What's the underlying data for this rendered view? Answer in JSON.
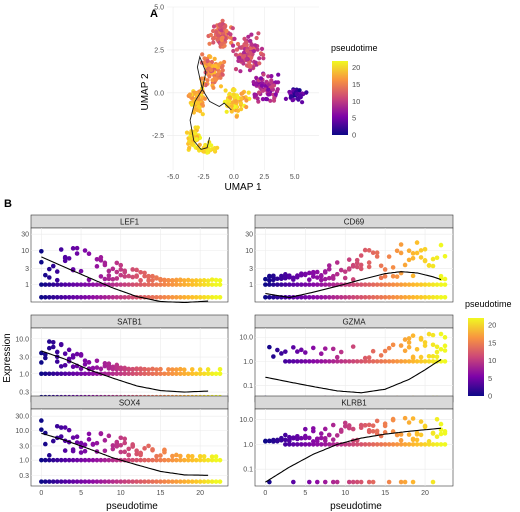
{
  "panel_a": {
    "tag": "A",
    "xlabel": "UMAP 1",
    "ylabel": "UMAP 2",
    "x_ticks": [
      "-5.0",
      "-2.5",
      "0.0",
      "2.5",
      "5.0"
    ],
    "y_ticks": [
      "-2.5",
      "0.0",
      "2.5",
      "5.0"
    ],
    "legend_title": "pseudotime",
    "legend_ticks": [
      "20",
      "15",
      "10",
      "5",
      "0"
    ]
  },
  "panel_b": {
    "tag": "B",
    "xlabel_left": "pseudotime",
    "xlabel_right": "pseudotime",
    "ylabel": "Expression",
    "legend_title": "pseudotime",
    "legend_ticks": [
      "20",
      "15",
      "10",
      "5",
      "0"
    ],
    "x_ticks": [
      "0",
      "5",
      "10",
      "15",
      "20"
    ],
    "facets": [
      {
        "gene": "LEF1",
        "y_ticks": [
          "30",
          "10",
          "3",
          "1"
        ]
      },
      {
        "gene": "CD69",
        "y_ticks": [
          "30",
          "10",
          "3",
          "1"
        ]
      },
      {
        "gene": "SATB1",
        "y_ticks": [
          "10.0",
          "3.0",
          "1.0",
          "0.3"
        ]
      },
      {
        "gene": "GZMA",
        "y_ticks": [
          "10.0",
          "1.0",
          "0.1"
        ]
      },
      {
        "gene": "SOX4",
        "y_ticks": [
          "30.0",
          "10.0",
          "3.0",
          "1.0",
          "0.3"
        ]
      },
      {
        "gene": "KLRB1",
        "y_ticks": [
          "10.0",
          "1.0",
          "0.1"
        ]
      }
    ]
  },
  "chart_data": [
    {
      "type": "scatter",
      "xlabel": "UMAP 1",
      "ylabel": "UMAP 2",
      "xlim": [
        -5.5,
        7
      ],
      "ylim": [
        -4.5,
        5
      ],
      "color_by": "pseudotime",
      "color_range": [
        0,
        22
      ],
      "trajectory_x": [
        -0.2,
        -0.8,
        -1.2,
        -2.0,
        -2.6,
        -3.0,
        -2.8,
        -2.3,
        -2.6,
        -3.2,
        -3.6,
        -3.3,
        -2.7,
        -2.2,
        -2.0
      ],
      "trajectory_y": [
        -1.0,
        -0.6,
        -0.8,
        -0.5,
        0.2,
        1.5,
        2.1,
        1.2,
        0.2,
        -0.5,
        -1.6,
        -2.8,
        -3.3,
        -3.2,
        -2.6
      ]
    },
    {
      "type": "scatter",
      "facet": "LEF1",
      "xlim": [
        -0.8,
        23
      ],
      "y_scale": "log",
      "smooth_x": [
        0,
        3,
        6,
        9,
        12,
        15,
        18,
        21
      ],
      "smooth_y": [
        6.5,
        3.2,
        1.6,
        0.8,
        0.45,
        0.32,
        0.3,
        0.33
      ]
    },
    {
      "type": "scatter",
      "facet": "CD69",
      "xlim": [
        -0.8,
        23
      ],
      "y_scale": "log",
      "smooth_x": [
        0,
        3,
        6,
        9,
        12,
        15,
        17,
        19,
        21,
        22
      ],
      "smooth_y": [
        0.55,
        0.42,
        0.6,
        0.9,
        1.4,
        2.1,
        2.4,
        2.2,
        1.7,
        1.4
      ]
    },
    {
      "type": "scatter",
      "facet": "SATB1",
      "xlim": [
        -0.8,
        23
      ],
      "y_scale": "log",
      "smooth_x": [
        0,
        3,
        6,
        9,
        12,
        15,
        18,
        21
      ],
      "smooth_y": [
        4.5,
        2.6,
        1.3,
        0.75,
        0.45,
        0.33,
        0.3,
        0.32
      ]
    },
    {
      "type": "scatter",
      "facet": "GZMA",
      "xlim": [
        -0.8,
        23
      ],
      "y_scale": "log",
      "smooth_x": [
        0,
        3,
        6,
        9,
        12,
        15,
        18,
        20,
        22
      ],
      "smooth_y": [
        0.22,
        0.14,
        0.09,
        0.06,
        0.05,
        0.07,
        0.18,
        0.45,
        1.2
      ]
    },
    {
      "type": "scatter",
      "facet": "SOX4",
      "xlim": [
        -0.8,
        23
      ],
      "y_scale": "log",
      "smooth_x": [
        0,
        3,
        6,
        9,
        12,
        15,
        18,
        21
      ],
      "smooth_y": [
        8.0,
        4.6,
        2.4,
        1.2,
        0.7,
        0.42,
        0.32,
        0.31
      ]
    },
    {
      "type": "scatter",
      "facet": "KLRB1",
      "xlim": [
        -0.8,
        23
      ],
      "y_scale": "log",
      "smooth_x": [
        0,
        3,
        6,
        9,
        12,
        15,
        18,
        21,
        22
      ],
      "smooth_y": [
        0.03,
        0.12,
        0.4,
        1.0,
        1.8,
        2.6,
        3.4,
        4.2,
        4.5
      ]
    }
  ]
}
